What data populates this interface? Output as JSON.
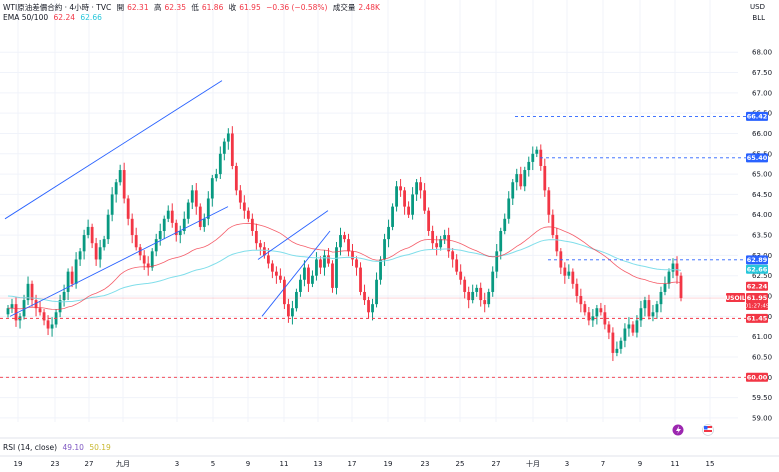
{
  "legend": {
    "symbol": "WTI原油差價合約 · 4小時 · TVC",
    "open_label": "開",
    "open_value": "62.31",
    "high_label": "高",
    "high_value": "62.35",
    "low_label": "低",
    "low_value": "61.86",
    "close_label": "收",
    "close_value": "61.95",
    "change": "−0.36 (−0.58%)",
    "volume_label": "成交量",
    "volume_value": "2.48K",
    "ema_label": "EMA 50/100",
    "ema50": "62.24",
    "ema100": "62.66",
    "rsi_label": "RSI (14, close)",
    "rsi_value": "49.10",
    "rsi_ma": "50.19"
  },
  "axis": {
    "currency": "USD",
    "unit": "BLL",
    "y_ticks": [
      "68.00",
      "67.50",
      "67.00",
      "66.50",
      "66.00",
      "65.50",
      "65.00",
      "64.50",
      "64.00",
      "63.50",
      "63.00",
      "62.50",
      "62.00",
      "61.50",
      "61.00",
      "60.50",
      "60.00",
      "59.50",
      "59.00"
    ],
    "x_ticks": [
      "19",
      "23",
      "27",
      "九月",
      "3",
      "5",
      "9",
      "11",
      "13",
      "17",
      "19",
      "23",
      "25",
      "27",
      "十月",
      "3",
      "7",
      "9",
      "11",
      "15"
    ]
  },
  "badges": {
    "b1": {
      "text": "66.42",
      "color": "#2962ff"
    },
    "b2": {
      "text": "65.40",
      "color": "#2962ff"
    },
    "b3": {
      "text": "62.89",
      "color": "#2962ff"
    },
    "b4": {
      "text": "62.66",
      "color": "#26c6da"
    },
    "b5": {
      "text": "62.24",
      "color": "#f23645"
    },
    "b6": {
      "text": "61.95",
      "color": "#f23645"
    },
    "b6_timer": "01:27:49",
    "b7": {
      "text": "61.45",
      "color": "#f23645"
    },
    "b8": {
      "text": "60.00",
      "color": "#f23645"
    },
    "symbol_tag": "USOIL"
  },
  "chart_data": {
    "type": "candlestick",
    "y_axis_range": [
      58.9,
      68.3
    ],
    "up_color": "#089981",
    "down_color": "#f23645",
    "ema50_color": "#f23645",
    "ema100_color": "#80deea",
    "candles_close": [
      61.7,
      61.8,
      61.4,
      61.5,
      61.9,
      62.3,
      61.9,
      61.7,
      61.6,
      61.4,
      61.2,
      61.3,
      61.6,
      61.9,
      62.1,
      62.6,
      62.3,
      62.9,
      63.1,
      63.5,
      63.7,
      63.3,
      62.9,
      63.2,
      63.4,
      64.0,
      64.5,
      64.8,
      65.1,
      64.4,
      63.9,
      63.5,
      63.2,
      63.0,
      62.8,
      62.7,
      63.1,
      63.4,
      63.6,
      63.9,
      64.1,
      63.8,
      63.5,
      63.6,
      63.9,
      64.3,
      64.6,
      64.2,
      63.7,
      63.9,
      64.4,
      64.9,
      65.0,
      65.5,
      65.8,
      66.0,
      65.2,
      64.6,
      64.3,
      64.1,
      63.9,
      63.6,
      63.3,
      63.2,
      63.0,
      62.8,
      62.6,
      62.5,
      62.4,
      61.8,
      61.5,
      61.7,
      62.1,
      62.4,
      62.7,
      62.3,
      62.5,
      62.9,
      62.7,
      63.0,
      62.8,
      62.2,
      63.2,
      63.5,
      63.4,
      63.1,
      62.9,
      62.7,
      62.1,
      61.9,
      61.6,
      61.8,
      62.4,
      62.9,
      63.4,
      63.7,
      64.2,
      64.7,
      64.6,
      64.2,
      64.0,
      64.5,
      64.8,
      64.6,
      64.1,
      63.6,
      63.3,
      63.2,
      63.4,
      63.5,
      63.1,
      62.9,
      62.6,
      62.4,
      62.1,
      61.9,
      62.1,
      62.2,
      61.9,
      61.8,
      62.1,
      62.6,
      63.1,
      63.6,
      63.9,
      64.4,
      64.8,
      65.0,
      64.7,
      65.1,
      65.3,
      65.5,
      65.6,
      65.2,
      64.6,
      64.0,
      63.5,
      63.1,
      62.7,
      62.5,
      62.6,
      62.3,
      62.0,
      61.8,
      61.6,
      61.4,
      61.5,
      61.7,
      61.6,
      61.3,
      61.1,
      60.6,
      60.7,
      60.9,
      61.2,
      61.3,
      61.1,
      61.4,
      61.7,
      61.9,
      61.5,
      61.6,
      61.8,
      62.1,
      62.3,
      62.6,
      62.8,
      62.5,
      61.95
    ],
    "horizontal_levels": [
      {
        "value": 66.42,
        "style": "dashed",
        "color": "#2962ff"
      },
      {
        "value": 65.4,
        "style": "dashed",
        "color": "#2962ff"
      },
      {
        "value": 62.89,
        "style": "dashed",
        "color": "#2962ff"
      },
      {
        "value": 61.45,
        "style": "dashed",
        "color": "#f23645"
      },
      {
        "value": 60.0,
        "style": "dashed",
        "color": "#f23645"
      }
    ]
  }
}
